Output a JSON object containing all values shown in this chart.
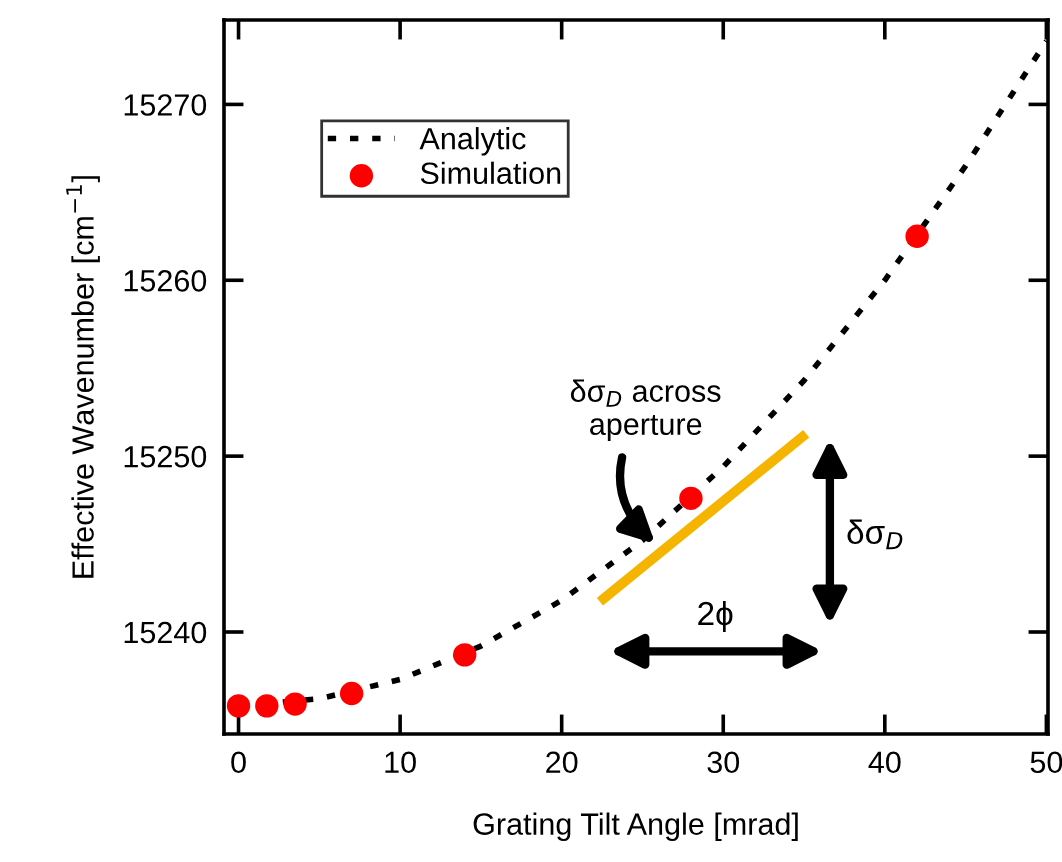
{
  "chart_data": {
    "type": "scatter",
    "xlabel": "Grating Tilt Angle [mrad]",
    "ylabel": "Effective Wavenumber [cm$^{−1}$]",
    "xlim": [
      -0.9,
      50.1
    ],
    "ylim": [
      15234.2,
      15274.8
    ],
    "xticks": [
      0,
      10,
      20,
      30,
      40,
      50
    ],
    "yticks": [
      15240,
      15250,
      15260,
      15270
    ],
    "grid": false,
    "legend": "top left",
    "series": [
      {
        "name": "Analytic",
        "type": "line",
        "color": "#000000",
        "line_style": "dotted",
        "marker": "none",
        "x": [
          0,
          5,
          10,
          15,
          20,
          25,
          30,
          35,
          40,
          45,
          50
        ],
        "values": [
          15235.8,
          15236.2,
          15237.3,
          15239.2,
          15241.8,
          15245.2,
          15249.4,
          15254.3,
          15260.0,
          15266.5,
          15273.6
        ]
      },
      {
        "name": "Simulation",
        "type": "scatter",
        "color": "#ff0000",
        "marker": "circle",
        "x": [
          0,
          1.75,
          3.5,
          7,
          14,
          28,
          42
        ],
        "values": [
          15235.8,
          15235.8,
          15235.9,
          15236.5,
          15238.7,
          15247.6,
          15262.5
        ]
      },
      {
        "type": "line",
        "color": "#f5b400",
        "line_style": "solid",
        "marker": "none",
        "x": [
          22.6,
          34.9
        ],
        "values": [
          15241.9,
          15251.1
        ]
      }
    ],
    "annotations": [
      {
        "text": "δσ$_{D}$ across\naperture",
        "x": 25.8,
        "y": 15245.0
      },
      "δσ$_{D}$",
      "2ϕ"
    ]
  }
}
